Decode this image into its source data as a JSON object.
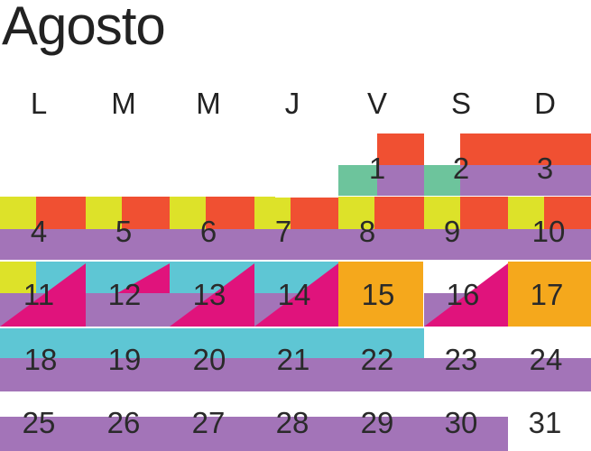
{
  "title": "Agosto",
  "weekdays": [
    "L",
    "M",
    "M",
    "J",
    "V",
    "S",
    "D"
  ],
  "days": {
    "d1": "1",
    "d2": "2",
    "d3": "3",
    "d4": "4",
    "d5": "5",
    "d6": "6",
    "d7": "7",
    "d8": "8",
    "d9": "9",
    "d10": "10",
    "d11": "11",
    "d12": "12",
    "d13": "13",
    "d14": "14",
    "d15": "15",
    "d16": "16",
    "d17": "17",
    "d18": "18",
    "d19": "19",
    "d20": "20",
    "d21": "21",
    "d22": "22",
    "d23": "23",
    "d24": "24",
    "d25": "25",
    "d26": "26",
    "d27": "27",
    "d28": "28",
    "d29": "29",
    "d30": "30",
    "d31": "31"
  },
  "colors": {
    "purple": "#a374b8",
    "orange_red": "#f05032",
    "yellow": "#dde229",
    "cyan": "#5ec6d4",
    "magenta": "#e0137c",
    "orange": "#f5a81c",
    "green": "#6dc49c",
    "text": "#222222"
  }
}
